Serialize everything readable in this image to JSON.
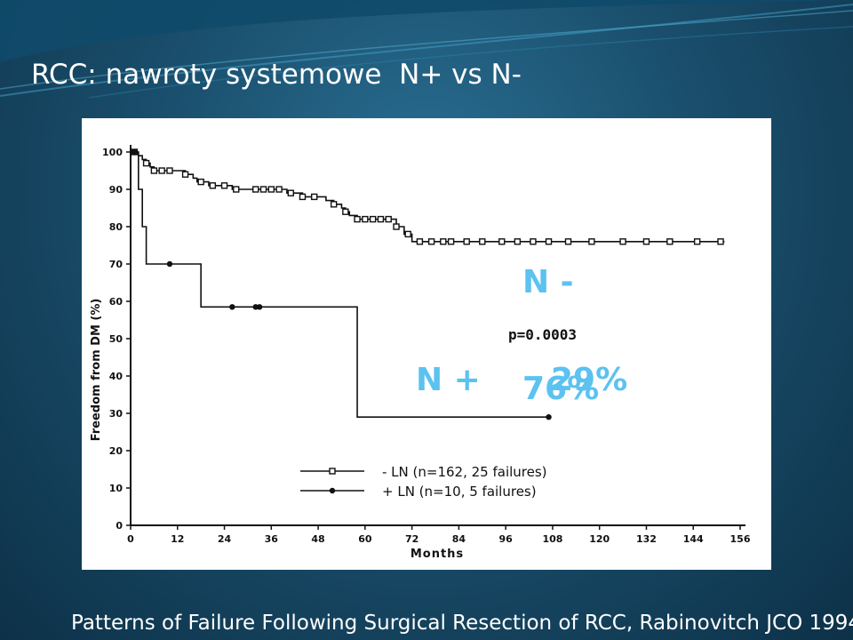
{
  "slide": {
    "title": "RCC: nawroty systemowe  N+ vs N-",
    "footer": "Patterns of Failure Following Surgical Resection of RCC, Rabinovitch JCO 1994"
  },
  "callouts": {
    "n_minus_label": "N -",
    "n_minus_value": "76%",
    "n_plus_label": "N +",
    "n_plus_value": "29%"
  },
  "colors": {
    "callout": "#5cc2ef",
    "chart_ink": "#111111"
  },
  "chart_data": {
    "type": "line",
    "step": true,
    "title": "",
    "xlabel": "Months",
    "ylabel": "Freedom from DM (%)",
    "xlim": [
      0,
      156
    ],
    "ylim": [
      0,
      100
    ],
    "xticks": [
      0,
      12,
      24,
      36,
      48,
      60,
      72,
      84,
      96,
      108,
      120,
      132,
      144,
      156
    ],
    "yticks": [
      0,
      10,
      20,
      30,
      40,
      50,
      60,
      70,
      80,
      90,
      100
    ],
    "annotation": "p=0.0003",
    "grid": false,
    "legend_position": "bottom-center",
    "series": [
      {
        "name": "- LN (n=162, 25 failures)",
        "marker": "square",
        "x": [
          0,
          2,
          3,
          4,
          5,
          6,
          8,
          10,
          11,
          14,
          16,
          17,
          18,
          20,
          24,
          26,
          30,
          40,
          44,
          48,
          50,
          52,
          54,
          55,
          56,
          58,
          60,
          64,
          68,
          70,
          72,
          74,
          152
        ],
        "y": [
          100,
          99,
          98,
          97,
          96,
          95,
          95,
          95,
          95,
          94,
          93,
          92,
          92,
          91,
          91,
          90,
          90,
          89,
          88,
          88,
          87,
          86,
          85,
          84,
          83,
          82,
          82,
          82,
          80,
          78,
          76,
          76,
          76
        ],
        "censor_x": [
          1,
          4,
          6,
          8,
          10,
          14,
          18,
          21,
          24,
          27,
          32,
          34,
          36,
          38,
          41,
          44,
          47,
          52,
          55,
          58,
          60,
          62,
          64,
          66,
          68,
          71,
          74,
          77,
          80,
          82,
          86,
          90,
          95,
          99,
          103,
          107,
          112,
          118,
          126,
          132,
          138,
          145,
          151
        ]
      },
      {
        "name": "+ LN (n=10, 5 failures)",
        "marker": "circle",
        "x": [
          0,
          2,
          3,
          4,
          18,
          58,
          107
        ],
        "y": [
          100,
          90,
          80,
          70,
          58.5,
          29,
          29
        ],
        "censor_x": [
          1,
          10,
          26,
          32,
          33,
          107
        ]
      }
    ]
  }
}
